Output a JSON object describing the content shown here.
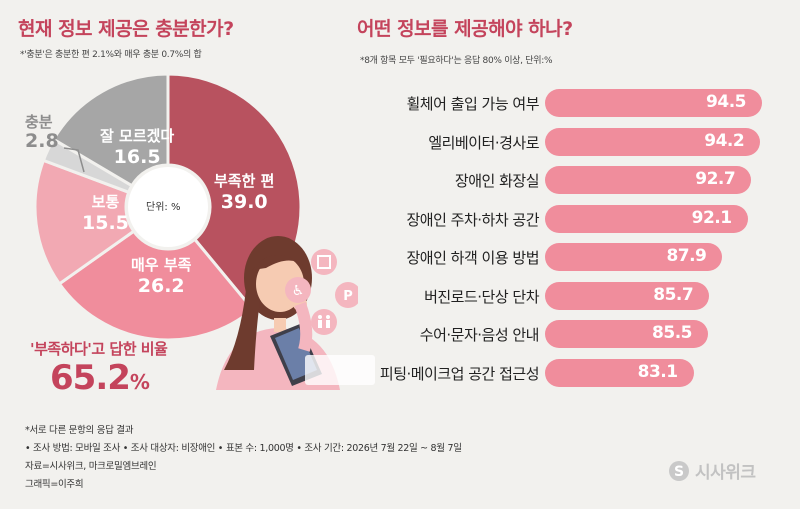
{
  "left": {
    "title": "현재 정보 제공은 충분한가?",
    "note": "*'충분'은 충분한 편 2.1%와 매우 충분 0.7%의 합",
    "center_label": "단위: %",
    "pie_labels": {
      "lacking_somewhat": {
        "name": "부족한 편",
        "value": "39.0"
      },
      "very_lacking": {
        "name": "매우 부족",
        "value": "26.2"
      },
      "normal": {
        "name": "보통",
        "value": "15.5"
      },
      "unsure": {
        "name": "잘 모르겠다",
        "value": "16.5"
      },
      "enough": {
        "name": "충분",
        "value": "2.8"
      }
    },
    "summary_label": "'부족하다'고 답한 비율",
    "summary_value": "65.2",
    "summary_unit": "%"
  },
  "right": {
    "title": "어떤 정보를 제공해야 하나?",
    "note": "*8개 항목 모두 '필요하다'는 응답 80% 이상, 단위:%"
  },
  "footer": {
    "line1": "*서로 다른 문항의 응답 결과",
    "line2": "• 조사 방법: 모바일 조사 • 조사 대상자: 비장애인 • 표본 수: 1,000명 • 조사 기간: 2026년 7월 22일 ~ 8월 7일",
    "line3": "자료=시사위크, 마크로밀엠브레인",
    "line4": "그래픽=이주희",
    "logo": "시사위크"
  },
  "colors": {
    "lacking_somewhat": "#b8525f",
    "very_lacking": "#f08d9c",
    "normal": "#f2a9b3",
    "unsure": "#a6a6a6",
    "enough": "#d7d7d7",
    "bar": "#f08d9c",
    "title": "#c4445c"
  },
  "chart_data": [
    {
      "type": "pie",
      "title": "현재 정보 제공은 충분한가?",
      "categories": [
        "부족한 편",
        "매우 부족",
        "보통",
        "충분",
        "잘 모르겠다"
      ],
      "values": [
        39.0,
        26.2,
        15.5,
        2.8,
        16.5
      ],
      "unit": "%"
    },
    {
      "type": "bar",
      "title": "어떤 정보를 제공해야 하나?",
      "categories": [
        "휠체어 출입 가능 여부",
        "엘리베이터·경사로",
        "장애인 화장실",
        "장애인 주차·하차 공간",
        "장애인 하객 이용 방법",
        "버진로드·단상 단차",
        "수어·문자·음성 안내",
        "피팅·메이크업 공간 접근성"
      ],
      "values": [
        94.5,
        94.2,
        92.7,
        92.1,
        87.9,
        85.7,
        85.5,
        83.1
      ],
      "unit": "%"
    }
  ]
}
